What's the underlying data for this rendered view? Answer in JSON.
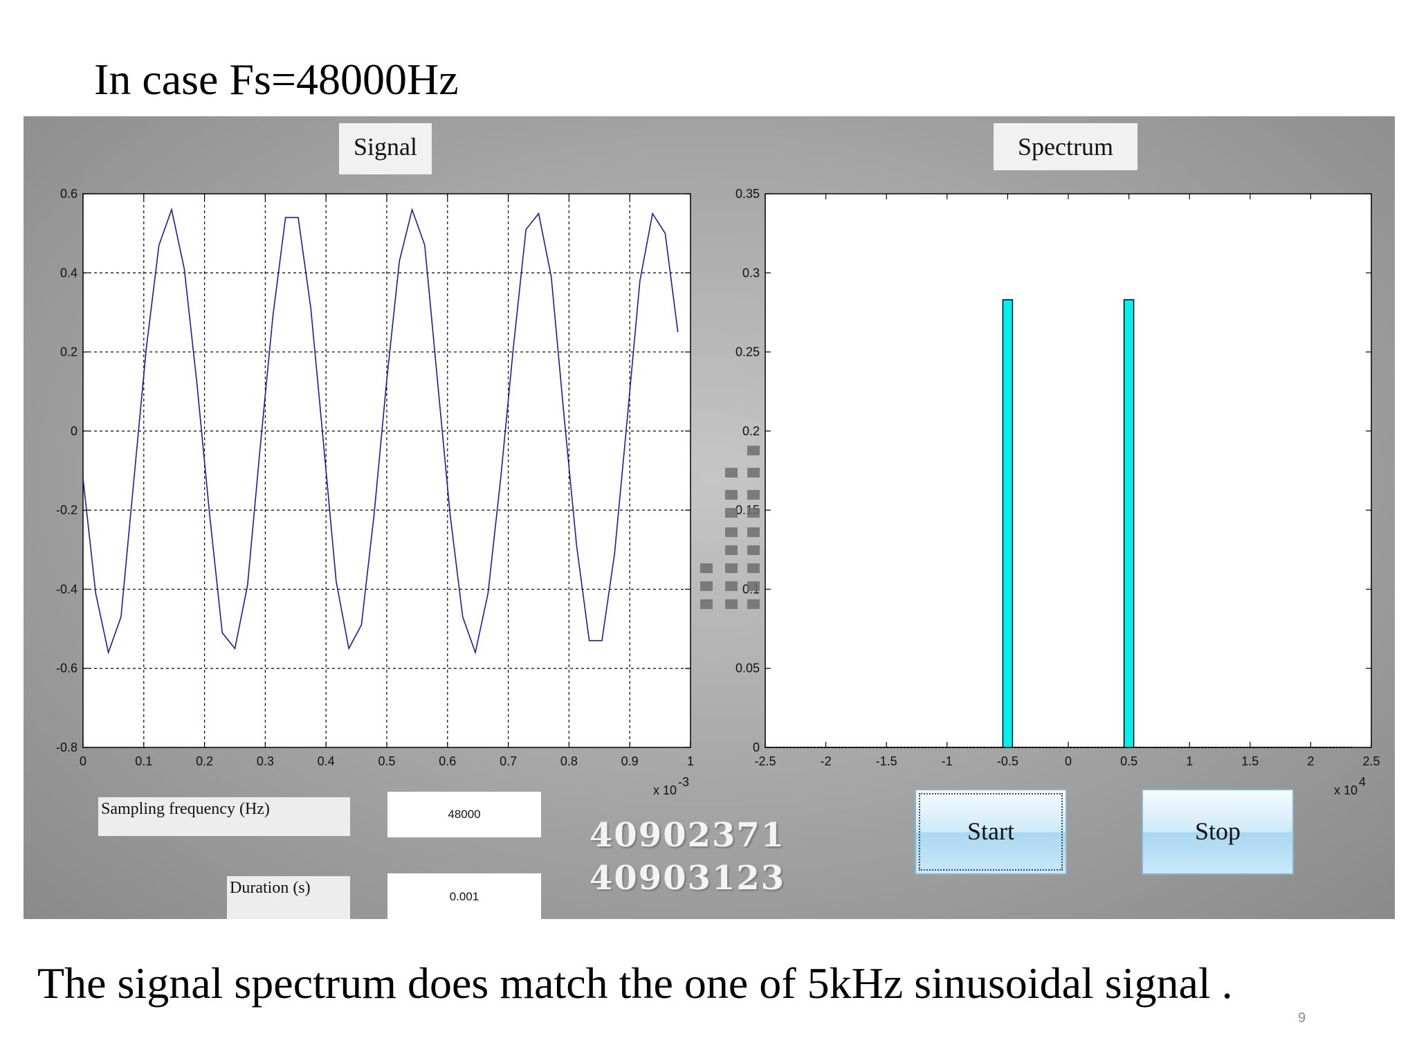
{
  "slide": {
    "title": "In case Fs=48000Hz",
    "caption": "The signal spectrum does match the one of 5kHz sinusoidal signal .",
    "page_number": "9"
  },
  "panels": {
    "signal_title": "Signal",
    "spectrum_title": "Spectrum"
  },
  "controls": {
    "sampling_label": "Sampling frequency (Hz)",
    "sampling_value": "48000",
    "duration_label": "Duration (s)",
    "duration_value": "0.001",
    "start_label": "Start",
    "stop_label": "Stop"
  },
  "student_ids": [
    "40902371",
    "40903123"
  ],
  "colors": {
    "signal_line": "#1a1aa8",
    "spectrum_bar": "#00f0f0",
    "button": "#bfe3f7"
  },
  "chart_data": [
    {
      "type": "line",
      "title": "Signal",
      "xlim": [
        0,
        1
      ],
      "ylim": [
        -0.8,
        0.6
      ],
      "x_multiplier_label": "x 10",
      "x_multiplier_exp": "-3",
      "xticks": [
        "0",
        "0.1",
        "0.2",
        "0.3",
        "0.4",
        "0.5",
        "0.6",
        "0.7",
        "0.8",
        "0.9",
        "1"
      ],
      "yticks": [
        "0.6",
        "0.4",
        "0.2",
        "0",
        "-0.2",
        "-0.4",
        "-0.6",
        "-0.8"
      ],
      "grid": true,
      "series": [
        {
          "x": [
            0,
            0.0208,
            0.0417,
            0.0625,
            0.0833,
            0.1042,
            0.125,
            0.1458,
            0.1667,
            0.1875,
            0.2083,
            0.2292,
            0.25,
            0.2708,
            0.2917,
            0.3125,
            0.3333,
            0.3542,
            0.375,
            0.3958,
            0.4167,
            0.4375,
            0.4583,
            0.4792,
            0.5,
            0.5208,
            0.5417,
            0.5625,
            0.5833,
            0.6042,
            0.625,
            0.6458,
            0.6667,
            0.6875,
            0.7083,
            0.7292,
            0.75,
            0.7708,
            0.7917,
            0.8125,
            0.8333,
            0.8542,
            0.875,
            0.8958,
            0.9167,
            0.9375,
            0.9583,
            0.9792
          ],
          "y": [
            -0.12,
            -0.41,
            -0.56,
            -0.47,
            -0.13,
            0.21,
            0.47,
            0.56,
            0.41,
            0.12,
            -0.21,
            -0.51,
            -0.55,
            -0.39,
            -0.04,
            0.29,
            0.54,
            0.54,
            0.31,
            -0.03,
            -0.38,
            -0.55,
            -0.49,
            -0.21,
            0.13,
            0.43,
            0.56,
            0.47,
            0.13,
            -0.21,
            -0.47,
            -0.56,
            -0.41,
            -0.12,
            0.21,
            0.51,
            0.55,
            0.39,
            0.04,
            -0.29,
            -0.53,
            -0.53,
            -0.31,
            0.03,
            0.38,
            0.55,
            0.5,
            0.25
          ]
        }
      ]
    },
    {
      "type": "bar",
      "title": "Spectrum",
      "xlim": [
        -2.5,
        2.5
      ],
      "ylim": [
        0,
        0.35
      ],
      "x_multiplier_label": "x 10",
      "x_multiplier_exp": "4",
      "xticks": [
        "-2.5",
        "-2",
        "-1.5",
        "-1",
        "-0.5",
        "0",
        "0.5",
        "1",
        "1.5",
        "2",
        "2.5"
      ],
      "yticks": [
        "0.35",
        "0.3",
        "0.25",
        "0.2",
        "0.15",
        "0.1",
        "0.05",
        "0"
      ],
      "grid": false,
      "bars": [
        {
          "x": -0.5,
          "value": 0.283
        },
        {
          "x": 0.5,
          "value": 0.283
        }
      ]
    }
  ]
}
